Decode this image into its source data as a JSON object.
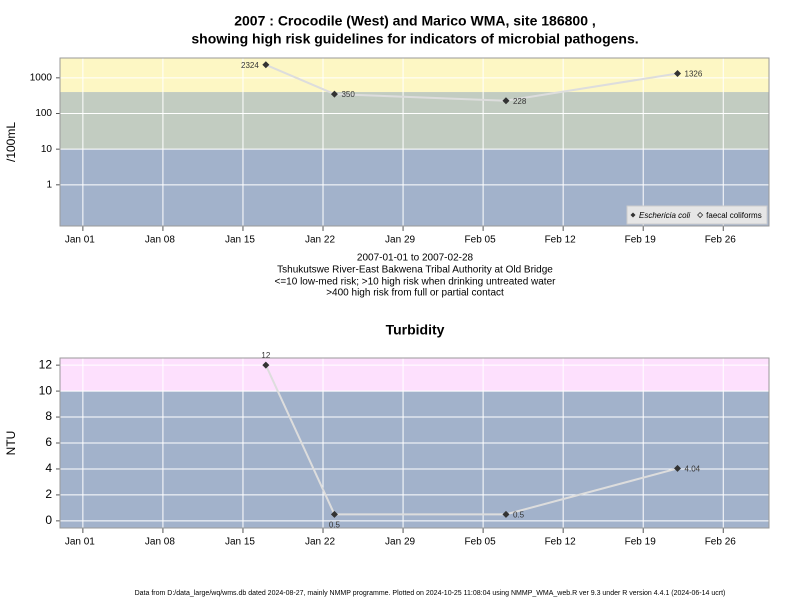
{
  "chart_data": [
    {
      "type": "line",
      "title": [
        "2007 : Crocodile (West) and Marico WMA, site 186800 ,",
        "showing high risk guidelines for indicators of microbial pathogens."
      ],
      "notes": [
        "2007-01-01 to 2007-02-28",
        "Tshukutswe River-East Bakwena Tribal Authority at Old Bridge",
        "<=10 low-med risk; >10 high risk when drinking untreated water",
        ">400 high risk from full or partial contact"
      ],
      "ylabel": "/100mL",
      "log_y": true,
      "x": [
        "2007-01-17",
        "2007-01-23",
        "2007-02-07",
        "2007-02-22"
      ],
      "series": [
        {
          "name": "Eschericia coli",
          "color": "#333333",
          "line_color": "#dddddd",
          "values": [
            2324,
            350,
            228,
            1326
          ]
        },
        {
          "name": "faecal coliforms",
          "color": "#333333",
          "line_color": "#dddddd",
          "values": [
            null,
            null,
            null,
            null
          ]
        }
      ],
      "xlim": [
        "2006-12-30",
        "2007-03-02"
      ],
      "xticks": [
        {
          "value": "2007-01-01",
          "label": "Jan 01"
        },
        {
          "value": "2007-01-08",
          "label": "Jan 08"
        },
        {
          "value": "2007-01-15",
          "label": "Jan 15"
        },
        {
          "value": "2007-01-22",
          "label": "Jan 22"
        },
        {
          "value": "2007-01-29",
          "label": "Jan 29"
        },
        {
          "value": "2007-02-05",
          "label": "Feb 05"
        },
        {
          "value": "2007-02-12",
          "label": "Feb 12"
        },
        {
          "value": "2007-02-19",
          "label": "Feb 19"
        },
        {
          "value": "2007-02-26",
          "label": "Feb 26"
        }
      ],
      "ylim": [
        0.07,
        3600
      ],
      "yticks": [
        1,
        10,
        100,
        1000
      ],
      "thresholds": [
        10,
        400
      ],
      "band_colors": [
        "#a2b2cb",
        "#c2ccc1",
        "#fdf7c4"
      ],
      "grid": true,
      "legend": "bottomright"
    },
    {
      "type": "line",
      "title": "Turbidity",
      "ylabel": "NTU",
      "x": [
        "2007-01-17",
        "2007-01-23",
        "2007-02-07",
        "2007-02-22"
      ],
      "values": [
        12,
        0.5,
        0.5,
        4.04
      ],
      "color": "#333333",
      "line_color": "#dddddd",
      "xlim": [
        "2006-12-30",
        "2007-03-02"
      ],
      "xticks": [
        {
          "value": "2007-01-01",
          "label": "Jan 01"
        },
        {
          "value": "2007-01-08",
          "label": "Jan 08"
        },
        {
          "value": "2007-01-15",
          "label": "Jan 15"
        },
        {
          "value": "2007-01-22",
          "label": "Jan 22"
        },
        {
          "value": "2007-01-29",
          "label": "Jan 29"
        },
        {
          "value": "2007-02-05",
          "label": "Feb 05"
        },
        {
          "value": "2007-02-12",
          "label": "Feb 12"
        },
        {
          "value": "2007-02-19",
          "label": "Feb 19"
        },
        {
          "value": "2007-02-26",
          "label": "Feb 26"
        }
      ],
      "ylim": [
        -0.55,
        12.55
      ],
      "yticks": [
        0,
        2,
        4,
        6,
        8,
        10,
        12
      ],
      "thresholds": [
        10
      ],
      "band_colors": [
        "#a2b2cb",
        "#fde0fd"
      ],
      "grid": true
    }
  ],
  "footer": "Data from D:/data_large/wq/wms.db dated 2024-08-27, mainly NMMP programme. Plotted on 2024-10-25 11:08:04 using NMMP_WMA_web.R ver 9.3 under R version 4.4.1 (2024-06-14 ucrt)"
}
